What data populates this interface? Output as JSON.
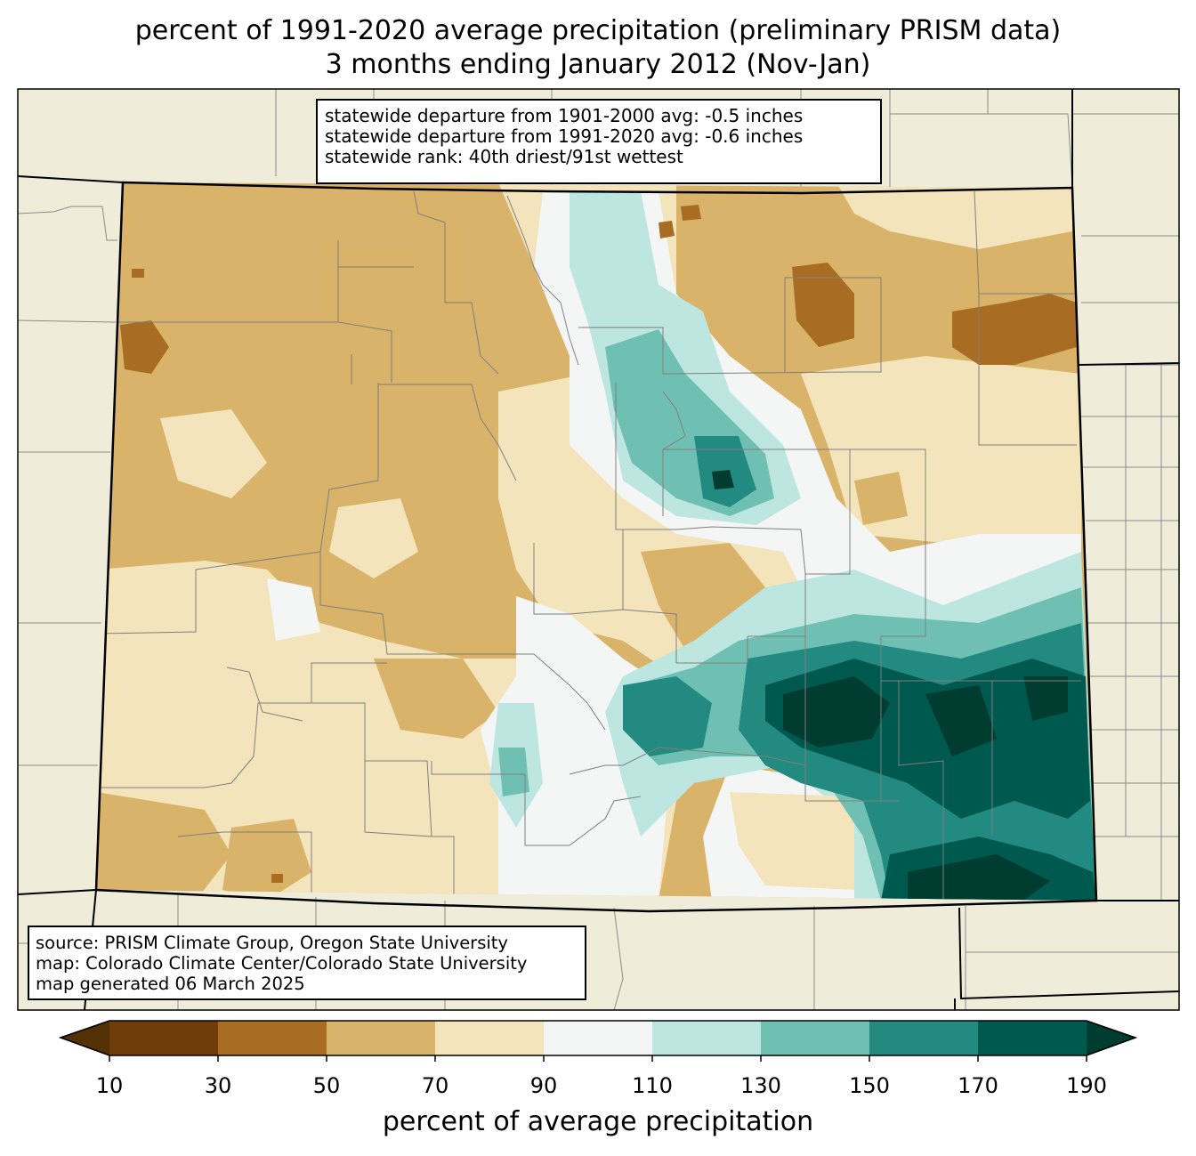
{
  "title": {
    "line1": "percent of 1991-2020 average precipitation (preliminary PRISM data)",
    "line2": "3 months ending January 2012 (Nov-Jan)"
  },
  "stats": [
    "statewide departure from 1901-2000 avg: -0.5 inches",
    "statewide departure from 1991-2020 avg: -0.6 inches",
    "statewide rank: 40th driest/91st wettest"
  ],
  "source": [
    "source: PRISM Climate Group, Oregon State University",
    "map: Colorado Climate Center/Colorado State University",
    "map generated 06 March 2025"
  ],
  "colorbar": {
    "label": "percent of average precipitation",
    "ticks": [
      "10",
      "30",
      "50",
      "70",
      "90",
      "110",
      "130",
      "150",
      "170",
      "190"
    ],
    "under_color": "#543005",
    "over_color": "#003c30",
    "colors": [
      "#6f3d0a",
      "#a86d22",
      "#d9b36a",
      "#f3e4bc",
      "#f4f6f5",
      "#bde6e1",
      "#6fc0b2",
      "#228a80",
      "#00594e"
    ]
  },
  "map_colors": {
    "background": "#efedda",
    "state_line": "#000000",
    "county_line": "#808080"
  }
}
